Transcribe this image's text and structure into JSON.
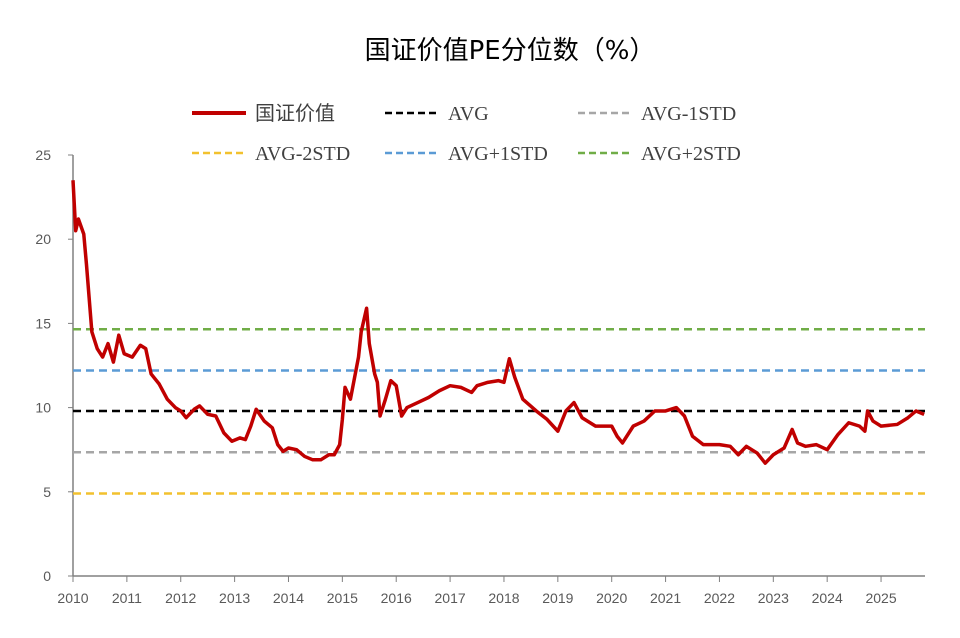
{
  "chart_data": {
    "type": "line",
    "title": "国证价值PE分位数（%）",
    "xlabel": "",
    "ylabel": "",
    "xlim": [
      2010,
      2025.8
    ],
    "ylim": [
      0,
      25
    ],
    "yticks": [
      "0",
      "5",
      "10",
      "15",
      "20",
      "25"
    ],
    "xticks": [
      "2010",
      "2011",
      "2012",
      "2013",
      "2014",
      "2015",
      "2016",
      "2017",
      "2018",
      "2019",
      "2020",
      "2021",
      "2022",
      "2023",
      "2024",
      "2025"
    ],
    "grid": false,
    "legend_position": "top",
    "series": [
      {
        "name": "国证价值",
        "color": "#C00000",
        "style": "solid",
        "x": [
          2010.0,
          2010.05,
          2010.1,
          2010.2,
          2010.25,
          2010.35,
          2010.45,
          2010.55,
          2010.65,
          2010.75,
          2010.85,
          2010.95,
          2011.1,
          2011.25,
          2011.35,
          2011.45,
          2011.6,
          2011.75,
          2011.9,
          2012.0,
          2012.1,
          2012.25,
          2012.35,
          2012.5,
          2012.65,
          2012.8,
          2012.95,
          2013.1,
          2013.2,
          2013.3,
          2013.4,
          2013.55,
          2013.7,
          2013.8,
          2013.9,
          2014.0,
          2014.15,
          2014.3,
          2014.45,
          2014.6,
          2014.75,
          2014.85,
          2014.95,
          2015.0,
          2015.05,
          2015.15,
          2015.3,
          2015.35,
          2015.45,
          2015.5,
          2015.6,
          2015.65,
          2015.7,
          2015.8,
          2015.9,
          2016.0,
          2016.1,
          2016.2,
          2016.4,
          2016.6,
          2016.8,
          2017.0,
          2017.2,
          2017.4,
          2017.5,
          2017.7,
          2017.9,
          2018.0,
          2018.1,
          2018.2,
          2018.35,
          2018.6,
          2018.8,
          2019.0,
          2019.15,
          2019.3,
          2019.45,
          2019.7,
          2020.0,
          2020.1,
          2020.2,
          2020.4,
          2020.6,
          2020.8,
          2021.0,
          2021.2,
          2021.35,
          2021.5,
          2021.7,
          2022.0,
          2022.2,
          2022.35,
          2022.5,
          2022.7,
          2022.85,
          2023.0,
          2023.2,
          2023.35,
          2023.45,
          2023.6,
          2023.8,
          2024.0,
          2024.2,
          2024.4,
          2024.6,
          2024.7,
          2024.75,
          2024.85,
          2025.0,
          2025.3,
          2025.5,
          2025.65,
          2025.8
        ],
        "y": [
          23.5,
          20.5,
          21.2,
          20.3,
          18.5,
          14.5,
          13.5,
          13.0,
          13.8,
          12.7,
          14.3,
          13.2,
          13.0,
          13.7,
          13.5,
          12.0,
          11.4,
          10.5,
          10.0,
          9.8,
          9.4,
          9.9,
          10.1,
          9.6,
          9.5,
          8.5,
          8.0,
          8.2,
          8.1,
          8.9,
          9.9,
          9.2,
          8.8,
          7.8,
          7.4,
          7.6,
          7.5,
          7.1,
          6.9,
          6.9,
          7.2,
          7.2,
          7.8,
          9.3,
          11.2,
          10.5,
          13.0,
          14.5,
          15.9,
          13.8,
          12.0,
          11.5,
          9.5,
          10.5,
          11.6,
          11.3,
          9.5,
          10.0,
          10.3,
          10.6,
          11.0,
          11.3,
          11.2,
          10.9,
          11.3,
          11.5,
          11.6,
          11.5,
          12.9,
          11.8,
          10.5,
          9.8,
          9.3,
          8.6,
          9.8,
          10.3,
          9.4,
          8.9,
          8.9,
          8.3,
          7.9,
          8.9,
          9.2,
          9.8,
          9.8,
          10.0,
          9.5,
          8.3,
          7.8,
          7.8,
          7.7,
          7.2,
          7.7,
          7.3,
          6.7,
          7.2,
          7.6,
          8.7,
          7.9,
          7.7,
          7.8,
          7.5,
          8.4,
          9.1,
          8.9,
          8.6,
          9.8,
          9.2,
          8.9,
          9.0,
          9.4,
          9.8,
          9.6
        ]
      },
      {
        "name": "AVG",
        "color": "#000000",
        "style": "dashed",
        "value": 9.8
      },
      {
        "name": "AVG-1STD",
        "color": "#A6A6A6",
        "style": "dashed",
        "value": 7.35
      },
      {
        "name": "AVG-2STD",
        "color": "#F2C12E",
        "style": "dashed",
        "value": 4.9
      },
      {
        "name": "AVG+1STD",
        "color": "#5B9BD5",
        "style": "dashed",
        "value": 12.2
      },
      {
        "name": "AVG+2STD",
        "color": "#70AD47",
        "style": "dashed",
        "value": 14.65
      }
    ]
  }
}
